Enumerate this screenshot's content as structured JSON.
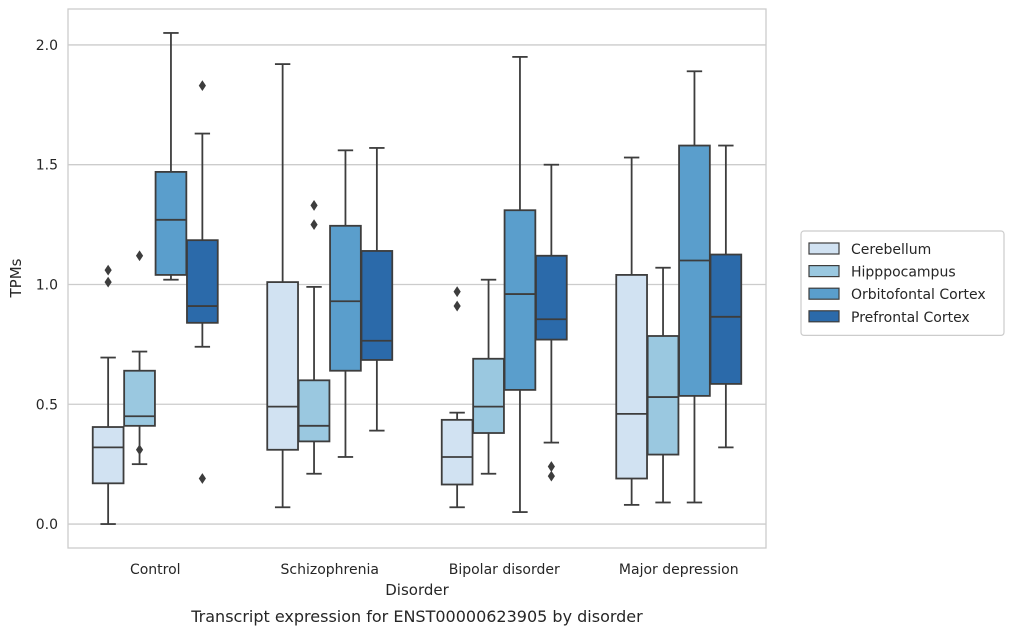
{
  "chart_data": {
    "type": "box",
    "title": "Transcript expression for ENST00000623905 by disorder",
    "xlabel": "Disorder",
    "ylabel": "TPMs",
    "ylim": [
      -0.1,
      2.15
    ],
    "yticks": [
      "0.0",
      "0.5",
      "1.0",
      "1.5",
      "2.0"
    ],
    "grid": "horizontal",
    "legend_position": "right",
    "categories": [
      "Control",
      "Schizophrenia",
      "Bipolar disorder",
      "Major depression"
    ],
    "series": [
      {
        "name": "Cerebellum",
        "color": "#d1e2f2",
        "boxes": [
          {
            "low": 0.0,
            "q1": 0.17,
            "median": 0.32,
            "q3": 0.405,
            "high": 0.695,
            "outliers": [
              1.01,
              1.06
            ]
          },
          {
            "low": 0.07,
            "q1": 0.31,
            "median": 0.49,
            "q3": 1.01,
            "high": 1.92,
            "outliers": []
          },
          {
            "low": 0.07,
            "q1": 0.165,
            "median": 0.28,
            "q3": 0.435,
            "high": 0.465,
            "outliers": [
              0.91,
              0.97
            ]
          },
          {
            "low": 0.08,
            "q1": 0.19,
            "median": 0.46,
            "q3": 1.04,
            "high": 1.53,
            "outliers": []
          }
        ]
      },
      {
        "name": "Hipppocampus",
        "color": "#9ac8e0",
        "boxes": [
          {
            "low": 0.25,
            "q1": 0.41,
            "median": 0.45,
            "q3": 0.64,
            "high": 0.72,
            "outliers": [
              0.31,
              1.12
            ]
          },
          {
            "low": 0.21,
            "q1": 0.345,
            "median": 0.41,
            "q3": 0.6,
            "high": 0.99,
            "outliers": [
              1.25,
              1.33
            ]
          },
          {
            "low": 0.21,
            "q1": 0.38,
            "median": 0.49,
            "q3": 0.69,
            "high": 1.02,
            "outliers": []
          },
          {
            "low": 0.09,
            "q1": 0.29,
            "median": 0.53,
            "q3": 0.785,
            "high": 1.07,
            "outliers": []
          }
        ]
      },
      {
        "name": "Orbitofontal Cortex",
        "color": "#5a9ecc",
        "boxes": [
          {
            "low": 1.02,
            "q1": 1.04,
            "median": 1.27,
            "q3": 1.47,
            "high": 2.05,
            "outliers": []
          },
          {
            "low": 0.28,
            "q1": 0.64,
            "median": 0.93,
            "q3": 1.245,
            "high": 1.56,
            "outliers": []
          },
          {
            "low": 0.05,
            "q1": 0.56,
            "median": 0.96,
            "q3": 1.31,
            "high": 1.95,
            "outliers": []
          },
          {
            "low": 0.09,
            "q1": 0.535,
            "median": 1.1,
            "q3": 1.58,
            "high": 1.89,
            "outliers": []
          }
        ]
      },
      {
        "name": "Prefrontal Cortex",
        "color": "#2b6aaa",
        "boxes": [
          {
            "low": 0.74,
            "q1": 0.84,
            "median": 0.91,
            "q3": 1.185,
            "high": 1.63,
            "outliers": [
              0.19,
              1.83
            ]
          },
          {
            "low": 0.39,
            "q1": 0.685,
            "median": 0.765,
            "q3": 1.14,
            "high": 1.57,
            "outliers": []
          },
          {
            "low": 0.34,
            "q1": 0.77,
            "median": 0.855,
            "q3": 1.12,
            "high": 1.5,
            "outliers": [
              0.2,
              0.24
            ]
          },
          {
            "low": 0.32,
            "q1": 0.585,
            "median": 0.865,
            "q3": 1.125,
            "high": 1.58,
            "outliers": []
          }
        ]
      }
    ]
  }
}
